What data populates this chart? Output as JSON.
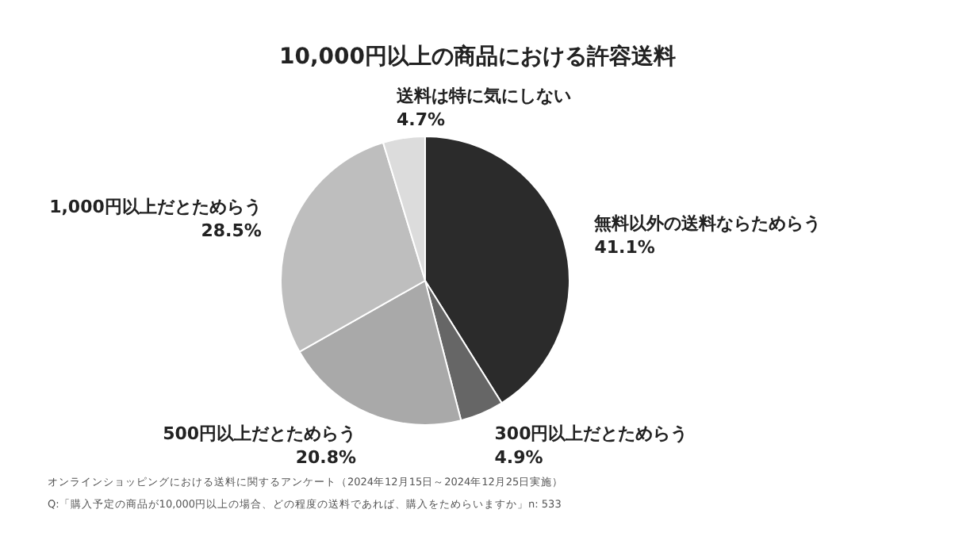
{
  "chart_data": {
    "type": "pie",
    "title": "10,000円以上の商品における許容送料",
    "categories": [
      "無料以外の送料ならためらう",
      "300円以上だとためらう",
      "500円以上だとためらう",
      "1,000円以上だとためらう",
      "送料は特に気にしない"
    ],
    "values": [
      41.1,
      4.9,
      20.8,
      28.5,
      4.7
    ],
    "colors": [
      "#2b2b2b",
      "#666666",
      "#a9a9a9",
      "#bebebe",
      "#dcdcdc"
    ],
    "value_labels": [
      "41.1%",
      "4.9%",
      "20.8%",
      "28.5%",
      "4.7%"
    ],
    "annotations": [
      "オンラインショッピングにおける送料に関するアンケート（2024年12月15日～2024年12月25日実施）",
      "Q:「購入予定の商品が10,000円以上の場合、どの程度の送料であれば、購入をためらいますか」n: 533"
    ]
  }
}
